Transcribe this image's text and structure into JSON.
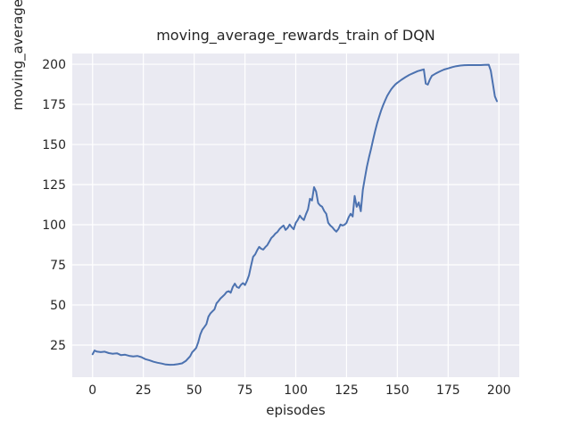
{
  "chart_data": {
    "type": "line",
    "title": "moving_average_rewards_train of DQN",
    "xlabel": "episodes",
    "ylabel": "moving_average_rewards_train",
    "x_ticks": [
      0,
      25,
      50,
      75,
      100,
      125,
      150,
      175,
      200
    ],
    "y_ticks": [
      25,
      50,
      75,
      100,
      125,
      150,
      175,
      200
    ],
    "xlim": [
      -10,
      210
    ],
    "ylim": [
      5,
      206.7
    ],
    "grid": true,
    "legend": false,
    "colors": {
      "line": "#4c72b0",
      "plot_background": "#eaeaf2",
      "grid": "#ffffff",
      "text": "#262626",
      "figure_background": "#ffffff"
    },
    "series": [
      {
        "name": "moving_average_rewards_train",
        "x": [
          0,
          1,
          2,
          4,
          6,
          8,
          10,
          12,
          14,
          16,
          18,
          20,
          22,
          24,
          26,
          28,
          30,
          32,
          34,
          36,
          38,
          40,
          42,
          44,
          46,
          48,
          49,
          50,
          51,
          52,
          53,
          54,
          55,
          56,
          57,
          58,
          59,
          60,
          61,
          62,
          63,
          64,
          65,
          66,
          67,
          68,
          69,
          70,
          71,
          72,
          73,
          74,
          75,
          76,
          77,
          78,
          79,
          80,
          81,
          82,
          83,
          84,
          85,
          86,
          87,
          88,
          89,
          90,
          91,
          92,
          93,
          94,
          95,
          96,
          97,
          98,
          99,
          100,
          101,
          102,
          103,
          104,
          105,
          106,
          107,
          108,
          109,
          110,
          111,
          112,
          113,
          114,
          115,
          116,
          117,
          118,
          119,
          120,
          121,
          122,
          123,
          124,
          125,
          126,
          127,
          128,
          129,
          130,
          131,
          132,
          133,
          134,
          135,
          136,
          137,
          138,
          139,
          140,
          141,
          142,
          143,
          144,
          145,
          146,
          147,
          148,
          149,
          150,
          152,
          154,
          156,
          158,
          160,
          162,
          163,
          164,
          165,
          166,
          167,
          169,
          171,
          173,
          175,
          177,
          179,
          181,
          183,
          185,
          187,
          189,
          191,
          193,
          195,
          196,
          197,
          198,
          199
        ],
        "y": [
          19.3,
          21.6,
          21.0,
          20.6,
          20.9,
          20.0,
          19.6,
          19.9,
          18.7,
          19.0,
          18.3,
          17.9,
          18.2,
          17.5,
          16.2,
          15.5,
          14.6,
          14.0,
          13.5,
          12.9,
          12.7,
          12.8,
          13.1,
          13.6,
          15.2,
          18.0,
          20.5,
          21.8,
          23.2,
          26.8,
          31.6,
          34.5,
          36.2,
          38.0,
          42.7,
          44.8,
          46.0,
          47.3,
          51.0,
          52.5,
          54.1,
          55.3,
          56.5,
          58.1,
          58.6,
          57.6,
          61.2,
          63.3,
          61.2,
          60.6,
          62.5,
          63.6,
          62.4,
          65.0,
          68.5,
          74.5,
          80.0,
          81.5,
          84.0,
          86.2,
          85.0,
          84.5,
          86.0,
          87.3,
          89.5,
          91.8,
          93.0,
          94.5,
          95.5,
          97.3,
          98.5,
          99.5,
          96.8,
          98.0,
          100.1,
          98.5,
          97.2,
          101.2,
          103.0,
          105.7,
          104.0,
          102.9,
          106.5,
          109.5,
          116.2,
          115.1,
          123.4,
          120.7,
          113.5,
          112.0,
          111.2,
          108.5,
          106.8,
          101.2,
          99.5,
          98.4,
          96.8,
          95.7,
          97.3,
          100.1,
          99.5,
          100.0,
          101.2,
          104.5,
          106.8,
          105.1,
          117.9,
          111.2,
          113.9,
          108.4,
          121.8,
          128.9,
          136.0,
          141.8,
          147.0,
          152.5,
          158.0,
          163.0,
          167.2,
          171.0,
          174.5,
          177.5,
          180.3,
          182.5,
          184.4,
          186.0,
          187.4,
          188.5,
          190.3,
          192.0,
          193.4,
          194.6,
          195.7,
          196.4,
          196.8,
          188.0,
          187.3,
          190.5,
          192.8,
          194.3,
          195.6,
          196.7,
          197.4,
          198.2,
          198.8,
          199.2,
          199.4,
          199.5,
          199.5,
          199.5,
          199.5,
          199.6,
          199.7,
          196.0,
          188.0,
          180.0,
          177.0
        ]
      }
    ]
  }
}
